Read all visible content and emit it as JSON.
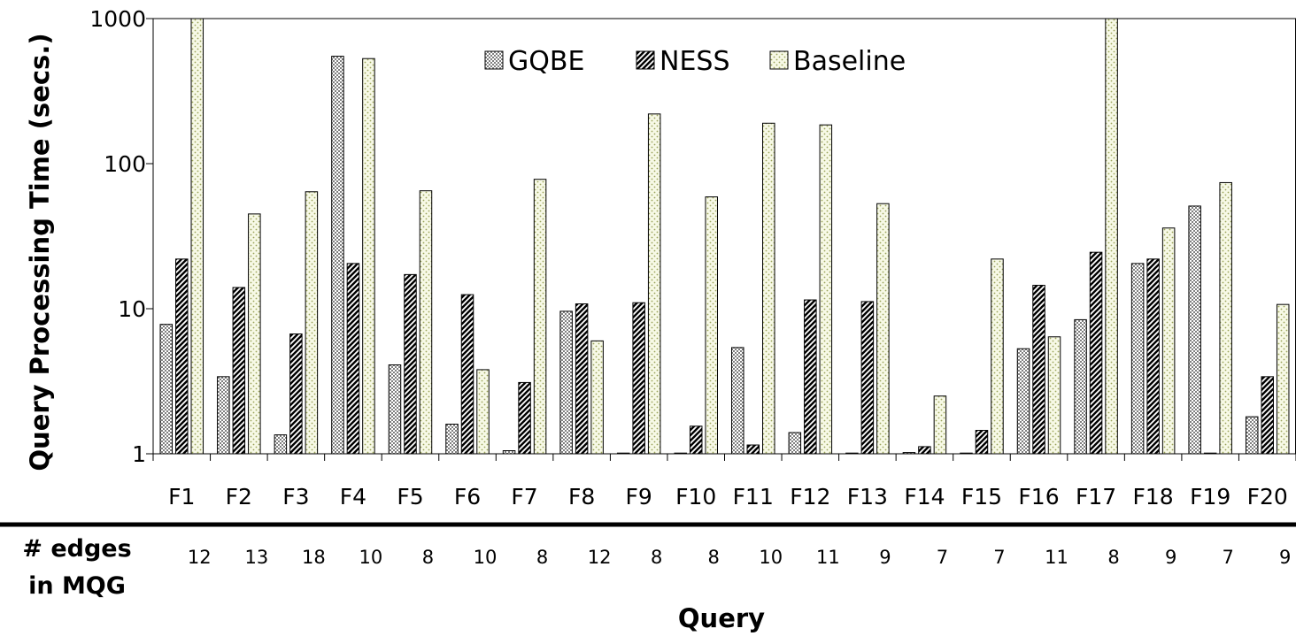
{
  "chart_data": {
    "type": "bar",
    "ylabel": "Query Processing Time (secs.)",
    "xlabel": "Query",
    "yscale": "log",
    "ylim": [
      1,
      1000
    ],
    "yticks": [
      "1",
      "10",
      "100",
      "1000"
    ],
    "legend_position": "top-center",
    "categories": [
      "F1",
      "F2",
      "F3",
      "F4",
      "F5",
      "F6",
      "F7",
      "F8",
      "F9",
      "F10",
      "F11",
      "F12",
      "F13",
      "F14",
      "F15",
      "F16",
      "F17",
      "F18",
      "F19",
      "F20"
    ],
    "series": [
      {
        "name": "GQBE",
        "pattern": "checker",
        "color": "#7f7f7f",
        "values": [
          7.8,
          3.4,
          1.35,
          550,
          4.1,
          1.6,
          1.05,
          9.6,
          1.0,
          1.0,
          5.4,
          1.4,
          1.0,
          1.02,
          1.0,
          5.3,
          8.4,
          20.5,
          51,
          1.8
        ]
      },
      {
        "name": "NESS",
        "pattern": "diagonal",
        "color": "#000000",
        "values": [
          22,
          14,
          6.7,
          20.5,
          17.2,
          12.5,
          3.1,
          10.8,
          11,
          1.55,
          1.15,
          11.5,
          11.2,
          1.12,
          1.45,
          14.5,
          24.5,
          22,
          1.0,
          3.4
        ]
      },
      {
        "name": "Baseline",
        "pattern": "dots",
        "color": "#f7f9e6",
        "values": [
          1000,
          45,
          64,
          530,
          65,
          3.8,
          78,
          6,
          220,
          59,
          190,
          185,
          53,
          2.5,
          22,
          6.4,
          1000,
          36,
          74,
          10.7
        ]
      }
    ],
    "edges_label_line1": "# edges",
    "edges_label_line2": "in MQG",
    "edges": [
      "12",
      "13",
      "18",
      "10",
      "8",
      "10",
      "8",
      "12",
      "8",
      "8",
      "10",
      "11",
      "9",
      "7",
      "7",
      "11",
      "8",
      "9",
      "7",
      "9"
    ]
  }
}
